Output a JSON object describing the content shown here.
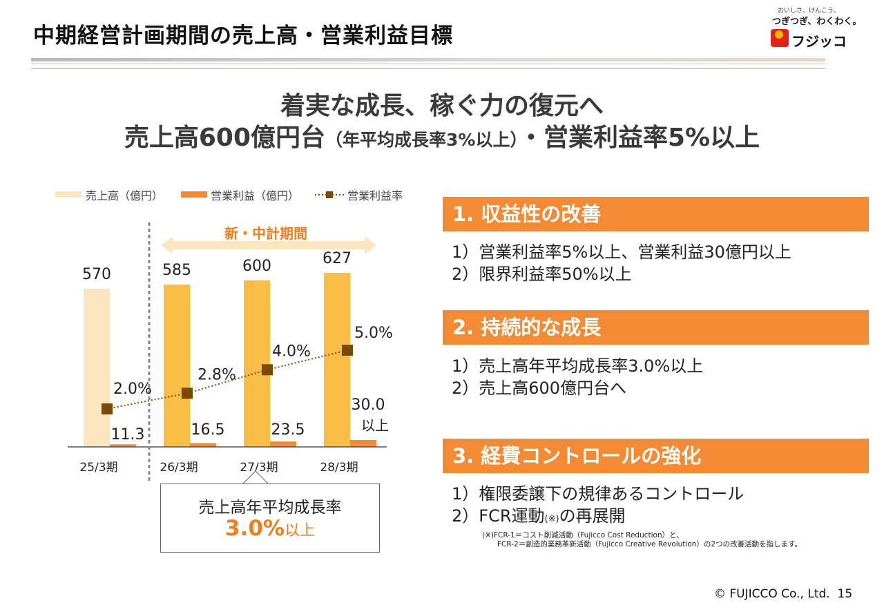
{
  "header": {
    "title": "中期経営計画期間の売上高・営業利益目標"
  },
  "logo": {
    "tagline": "おいしさ、けんこう、",
    "tagline2": "つぎつぎ、わくわく。",
    "name": "フジッコ"
  },
  "headline": {
    "line1": "着実な成長、稼ぐ力の復元へ",
    "line2_a": "売上高600億円台",
    "line2_b": "（年平均成長率3%以上）",
    "line2_c": "・営業利益率5%以上"
  },
  "chart_data": {
    "type": "bar",
    "categories": [
      "25/3期",
      "26/3期",
      "27/3期",
      "28/3期"
    ],
    "series": [
      {
        "name": "売上高（億円）",
        "values": [
          570,
          585,
          600,
          627
        ],
        "labels": [
          "570",
          "585",
          "600",
          "627"
        ],
        "color": "#fce6c0"
      },
      {
        "name": "営業利益（億円）",
        "values": [
          11.3,
          16.5,
          23.5,
          30.0
        ],
        "labels": [
          "11.3",
          "16.5",
          "23.5",
          "30.0"
        ],
        "color": "#f58a35"
      },
      {
        "name": "営業利益率",
        "values": [
          2.0,
          2.8,
          4.0,
          5.0
        ],
        "labels": [
          "2.0%",
          "2.8%",
          "4.0%",
          "5.0%"
        ],
        "color": "#7a4a00"
      }
    ],
    "highlight_bar_color": "#fbbd45",
    "extra_label": "以上",
    "period_label": "新・中計期間"
  },
  "callout": {
    "line1": "売上高年平均成長率",
    "value": "3.0%",
    "suffix": "以上"
  },
  "sections": [
    {
      "heading": "1.  収益性の改善",
      "items": [
        "1）営業利益率5%以上、営業利益30億円以上",
        "2）限界利益率50%以上"
      ]
    },
    {
      "heading": "2.  持続的な成長",
      "items": [
        "1）売上高年平均成長率3.0%以上",
        "2）売上高600億円台へ"
      ]
    },
    {
      "heading": "3.  経費コントロールの強化",
      "items": [
        "1）権限委譲下の規律あるコントロール",
        "2）FCR運動",
        "の再展開"
      ],
      "note_mark": "(※)"
    }
  ],
  "footnote": {
    "line1": "(※)FCR-1＝コスト削減活動（Fujicco Cost Reduction）と、",
    "line2": "FCR-2＝創造的業務革新活動（Fujicco Creative Revolution）の2つの改善活動を指します。"
  },
  "footer": {
    "copyright": "© FUJICCO Co., Ltd.",
    "page": "15"
  }
}
